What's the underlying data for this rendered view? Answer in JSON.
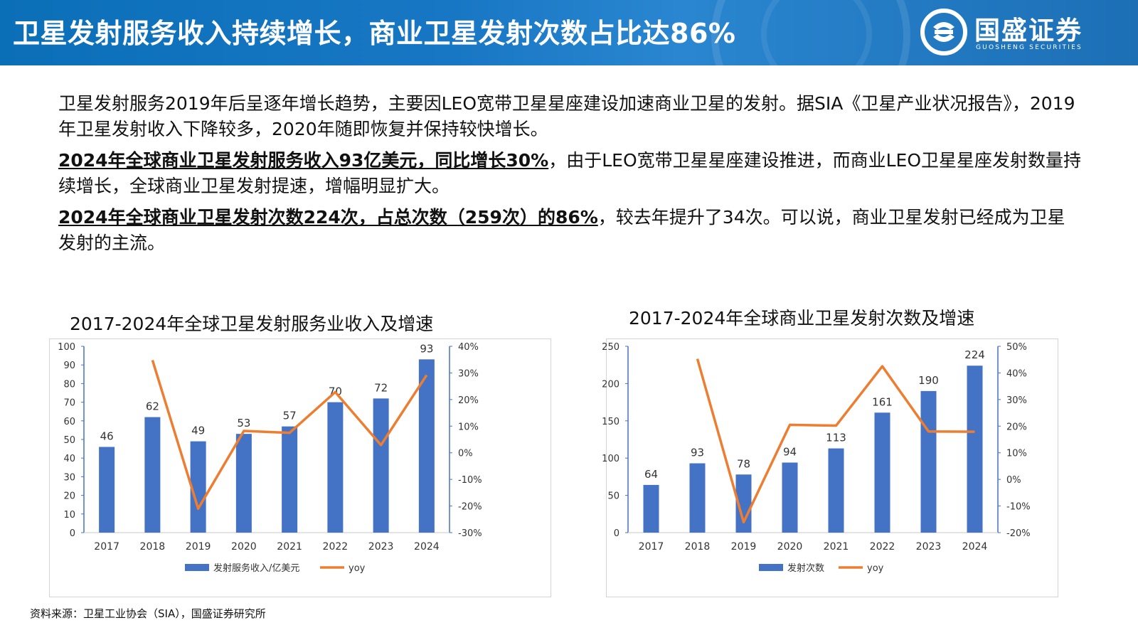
{
  "header": {
    "title": "卫星发射服务收入持续增长，商业卫星发射次数占比达86%",
    "logo_cn": "国盛证券",
    "logo_en": "GUOSHENG SECURITIES",
    "colors": {
      "bar": "#4472c4",
      "header_bg": "#1877c4"
    }
  },
  "body": {
    "p1": "卫星发射服务2019年后呈逐年增长趋势，主要因LEO宽带卫星星座建设加速商业卫星的发射。据SIA《卫星产业状况报告》，2019年卫星发射收入下降较多，2020年随即恢复并保持较快增长。",
    "p2_bold": "2024年全球商业卫星发射服务收入93亿美元，同比增长30%",
    "p2_rest": "，由于LEO宽带卫星星座建设推进，而商业LEO卫星星座发射数量持续增长，全球商业卫星发射提速，增幅明显扩大。",
    "p3_bold": "2024年全球商业卫星发射次数224次，占总次数（259次）的86%",
    "p3_rest": "，较去年提升了34次。可以说，商业卫星发射已经成为卫星发射的主流。"
  },
  "source": "资料来源：卫星工业协会（SIA），国盛证券研究所",
  "chart_data": [
    {
      "type": "bar",
      "title": "2017-2024年全球卫星发射服务业收入及增速",
      "categories": [
        "2017",
        "2018",
        "2019",
        "2020",
        "2021",
        "2022",
        "2023",
        "2024"
      ],
      "series": [
        {
          "name": "发射服务收入/亿美元",
          "type": "bar",
          "axis": "left",
          "values": [
            46,
            62,
            49,
            53,
            57,
            70,
            72,
            93
          ]
        },
        {
          "name": "yoy",
          "type": "line",
          "axis": "right",
          "values": [
            null,
            34.8,
            -21.0,
            8.2,
            7.5,
            22.8,
            2.9,
            29.2
          ]
        }
      ],
      "ylim": [
        0,
        100
      ],
      "yticks": [
        0,
        10,
        20,
        30,
        40,
        50,
        60,
        70,
        80,
        90,
        100
      ],
      "y2lim": [
        -30,
        40
      ],
      "y2ticks": [
        "-30%",
        "-20%",
        "-10%",
        "0%",
        "10%",
        "20%",
        "30%",
        "40%"
      ],
      "legend": "bottom",
      "grid": false
    },
    {
      "type": "bar",
      "title": "2017-2024年全球商业卫星发射次数及增速",
      "categories": [
        "2017",
        "2018",
        "2019",
        "2020",
        "2021",
        "2022",
        "2023",
        "2024"
      ],
      "series": [
        {
          "name": "发射次数",
          "type": "bar",
          "axis": "left",
          "values": [
            64,
            93,
            78,
            94,
            113,
            161,
            190,
            224
          ]
        },
        {
          "name": "yoy",
          "type": "line",
          "axis": "right",
          "values": [
            null,
            45.3,
            -16.1,
            20.5,
            20.2,
            42.5,
            18.0,
            17.9
          ]
        }
      ],
      "ylim": [
        0,
        250
      ],
      "yticks": [
        0,
        50,
        100,
        150,
        200,
        250
      ],
      "y2lim": [
        -20,
        50
      ],
      "y2ticks": [
        "-20%",
        "-10%",
        "0%",
        "10%",
        "20%",
        "30%",
        "40%",
        "50%"
      ],
      "legend": "bottom",
      "grid": false
    }
  ]
}
